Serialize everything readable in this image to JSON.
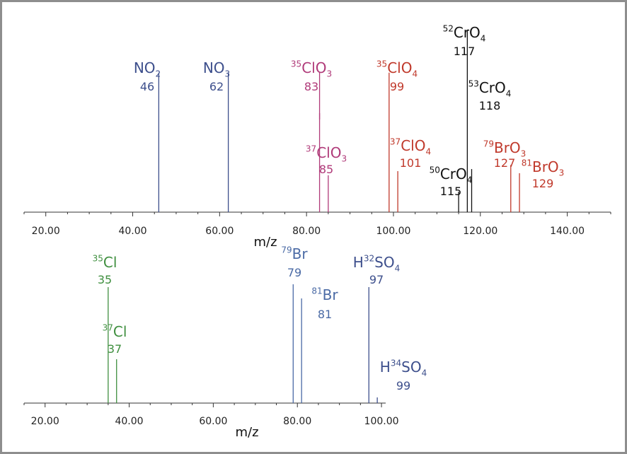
{
  "colors": {
    "blue": "#3d4f8c",
    "magenta": "#b03a79",
    "red": "#c0392b",
    "black": "#111111",
    "green": "#3f8f3f",
    "steel": "#4a6aa5"
  },
  "chart_data": [
    {
      "type": "bar",
      "xlabel": "m/z",
      "xlim": [
        15,
        150
      ],
      "xticks": [
        "20.00",
        "40.00",
        "60.00",
        "80.00",
        "100.00",
        "120.00",
        "140.00"
      ],
      "peaks": [
        {
          "mass": 46,
          "rel": 0.68,
          "formula_html": "NO<sub>2</sub>",
          "mass_label": "46",
          "color": "blue"
        },
        {
          "mass": 62,
          "rel": 0.68,
          "formula_html": "NO<sub>3</sub>",
          "mass_label": "62",
          "color": "blue"
        },
        {
          "mass": 83,
          "rel": 0.68,
          "formula_html": "<sup>35</sup>ClO<sub>3</sub>",
          "mass_label": "83",
          "color": "magenta"
        },
        {
          "mass": 85,
          "rel": 0.18,
          "formula_html": "<sup>37</sup>ClO<sub>3</sub>",
          "mass_label": "85",
          "color": "magenta"
        },
        {
          "mass": 99,
          "rel": 0.68,
          "formula_html": "<sup>35</sup>ClO<sub>4</sub>",
          "mass_label": "99",
          "color": "red"
        },
        {
          "mass": 101,
          "rel": 0.2,
          "formula_html": "<sup>37</sup>ClO<sub>4</sub>",
          "mass_label": "101",
          "color": "red"
        },
        {
          "mass": 115,
          "rel": 0.1,
          "formula_html": "<sup>50</sup>CrO<sub>4</sub>",
          "mass_label": "115",
          "color": "black"
        },
        {
          "mass": 117,
          "rel": 0.89,
          "formula_html": "<sup>52</sup>CrO<sub>4</sub>",
          "mass_label": "117",
          "color": "black"
        },
        {
          "mass": 118,
          "rel": 0.21,
          "formula_html": "<sup>53</sup>CrO<sub>4</sub>",
          "mass_label": "118",
          "color": "black"
        },
        {
          "mass": 127,
          "rel": 0.23,
          "formula_html": "<sup>79</sup>BrO<sub>3</sub>",
          "mass_label": "127",
          "color": "red"
        },
        {
          "mass": 129,
          "rel": 0.19,
          "formula_html": "<sup>81</sup>BrO<sub>3</sub>",
          "mass_label": "129",
          "color": "red"
        }
      ]
    },
    {
      "type": "bar",
      "xlabel": "m/z",
      "xlim": [
        15,
        101
      ],
      "xticks": [
        "20.00",
        "40.00",
        "60.00",
        "80.00",
        "100.00"
      ],
      "peaks": [
        {
          "mass": 35,
          "rel": 0.82,
          "formula_html": "<sup>35</sup>Cl",
          "mass_label": "35",
          "color": "green"
        },
        {
          "mass": 37,
          "rel": 0.31,
          "formula_html": "<sup>37</sup>Cl",
          "mass_label": "37",
          "color": "green"
        },
        {
          "mass": 79,
          "rel": 0.84,
          "formula_html": "<sup>79</sup>Br",
          "mass_label": "79",
          "color": "steel"
        },
        {
          "mass": 81,
          "rel": 0.74,
          "formula_html": "<sup>81</sup>Br",
          "mass_label": "81",
          "color": "steel"
        },
        {
          "mass": 97,
          "rel": 0.82,
          "formula_html": "H<sup>32</sup>SO<sub>4</sub>",
          "mass_label": "97",
          "color": "blue"
        },
        {
          "mass": 99,
          "rel": 0.04,
          "formula_html": "H<sup>34</sup>SO<sub>4</sub>",
          "mass_label": "99",
          "color": "blue"
        }
      ]
    }
  ]
}
